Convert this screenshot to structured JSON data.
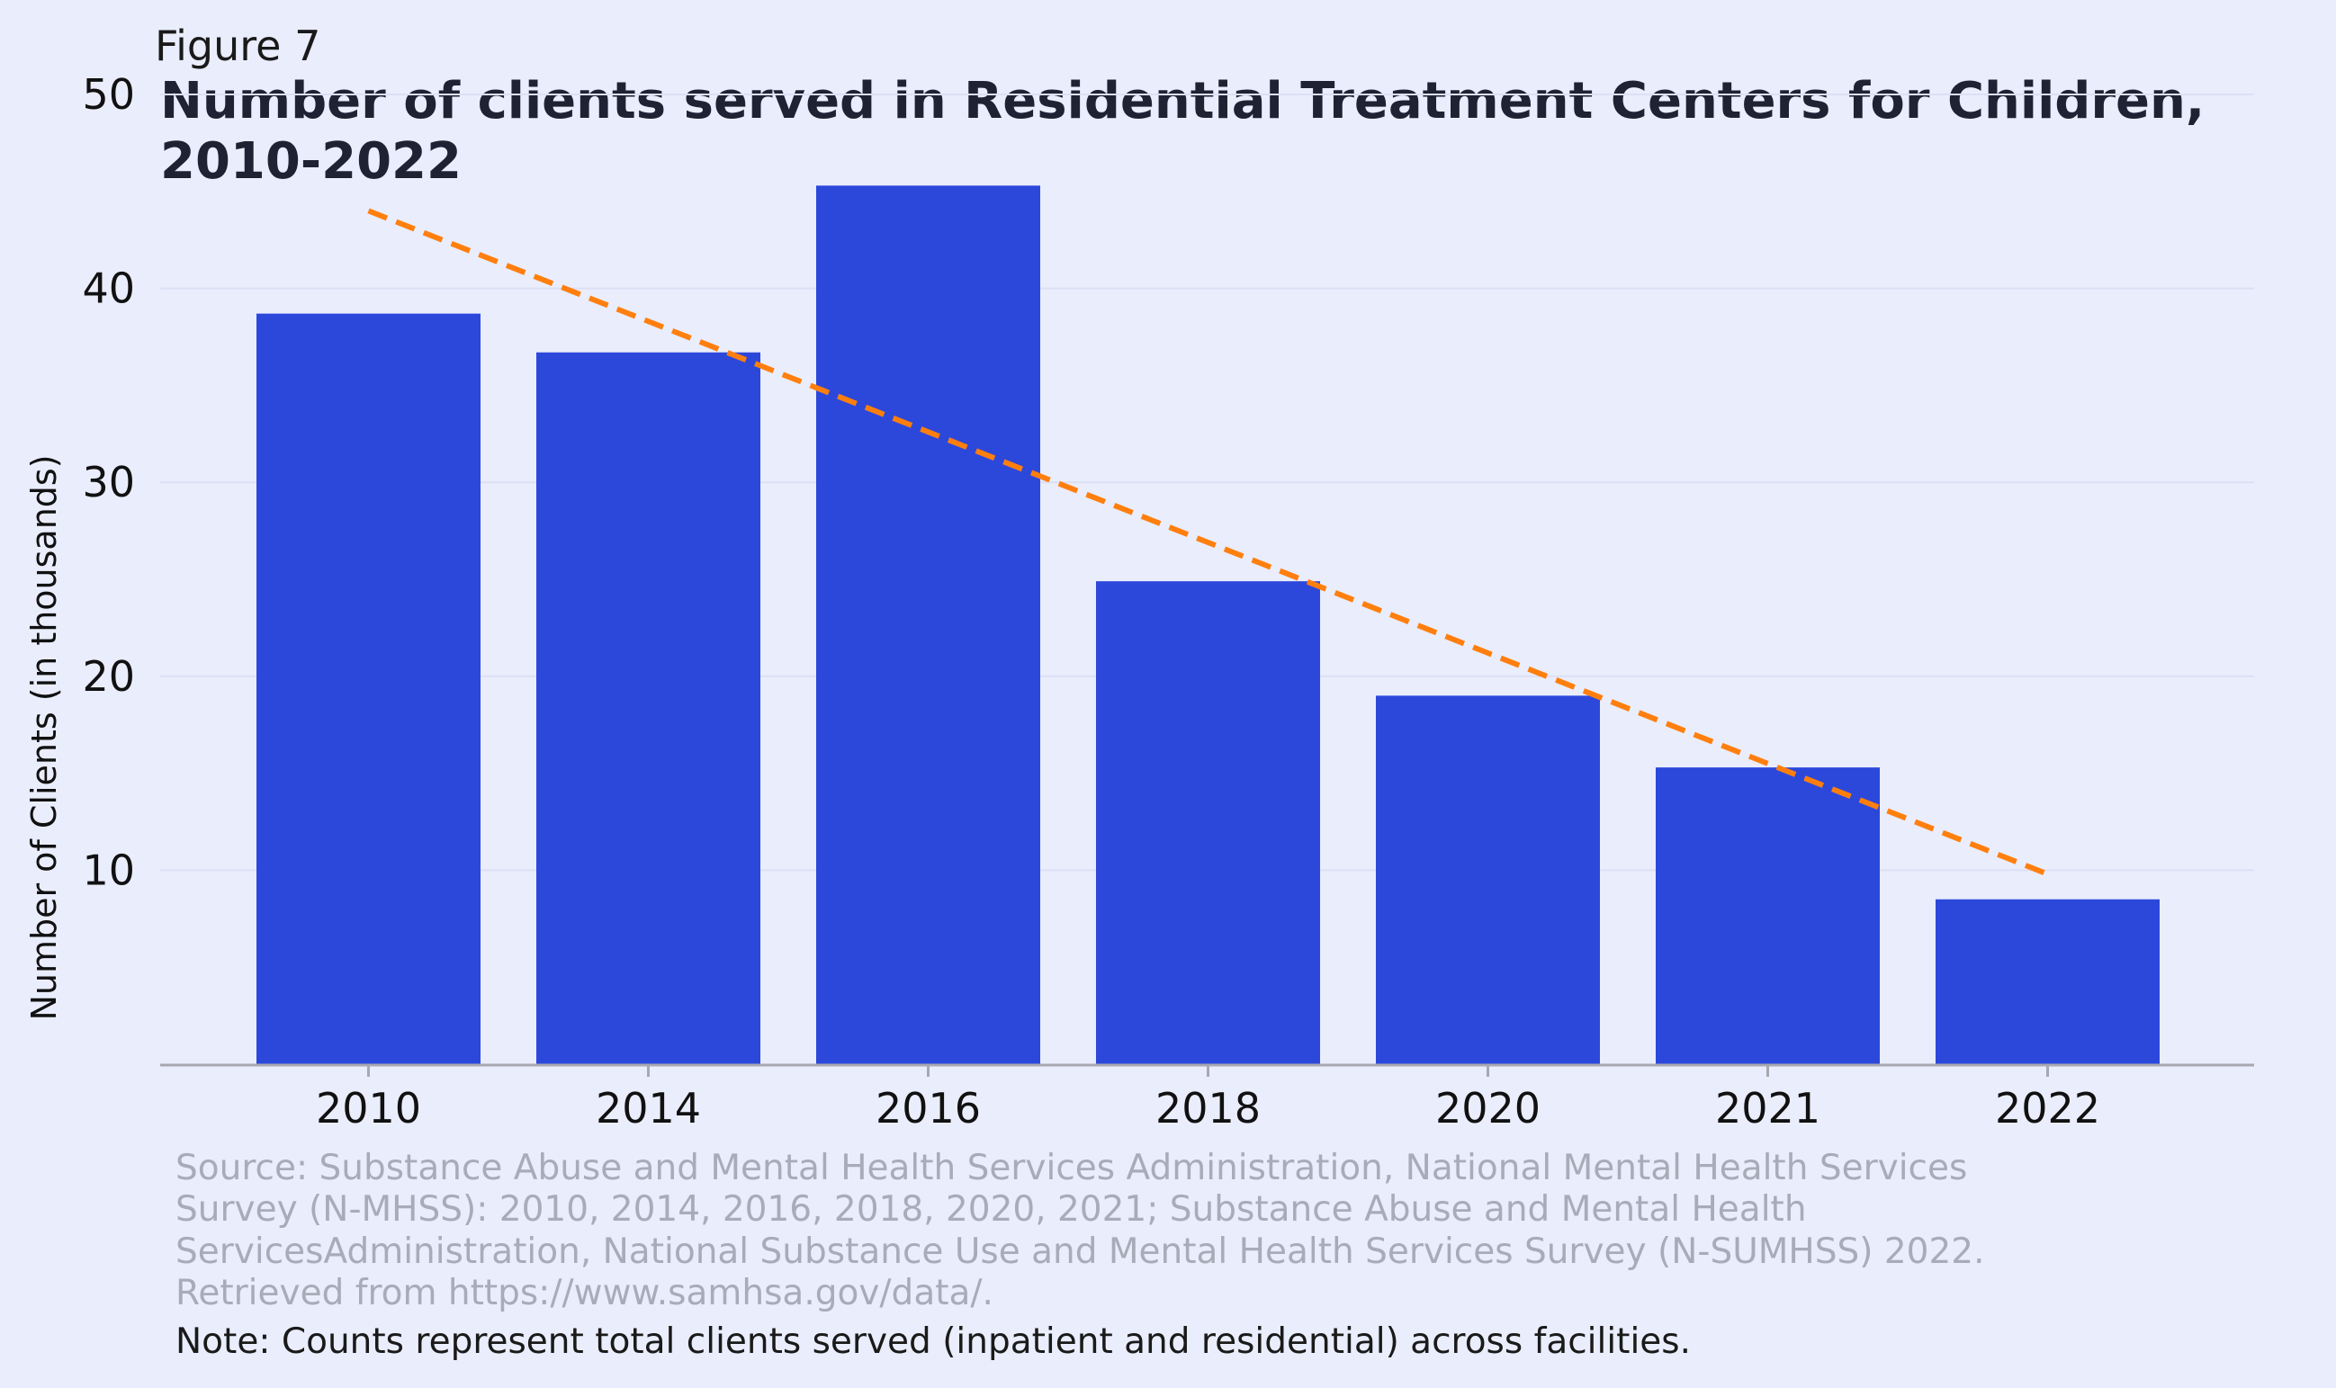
{
  "figure_label": "Figure 7",
  "title_lines": [
    "Number of clients served in Residential Treatment Centers for Children,",
    "2010-2022"
  ],
  "source_lines": [
    "Source: Substance Abuse and Mental Health Services Administration, National Mental Health Services",
    "Survey (N-MHSS): 2010, 2014, 2016, 2018, 2020, 2021; Substance Abuse and Mental Health",
    "ServicesAdministration, National Substance Use and Mental Health Services Survey (N-SUMHSS) 2022.",
    "Retrieved from https://www.samhsa.gov/data/."
  ],
  "note": "Note: Counts represent total clients served (inpatient and residential) across facilities.",
  "colors": {
    "background": "#eaedfc",
    "bar": "#2c48db",
    "trend": "#ff7f0e",
    "grid": "#dde0f3",
    "axis": "#a8a8b0"
  },
  "chart_data": {
    "type": "bar",
    "title": "Number of clients served in Residential Treatment Centers for Children, 2010-2022",
    "xlabel": "",
    "ylabel": "Number of Clients (in thousands)",
    "categories": [
      "2010",
      "2014",
      "2016",
      "2018",
      "2020",
      "2021",
      "2022"
    ],
    "values": [
      38.7,
      36.7,
      45.3,
      24.9,
      19.0,
      15.3,
      8.5
    ],
    "yticks": [
      10,
      20,
      30,
      40,
      50
    ],
    "ylim": [
      0,
      50
    ],
    "grid": "horizontal",
    "trendline": {
      "style": "dashed",
      "start": {
        "category": "2010",
        "value": 44.0
      },
      "end": {
        "category": "2022",
        "value": 9.8
      }
    }
  }
}
